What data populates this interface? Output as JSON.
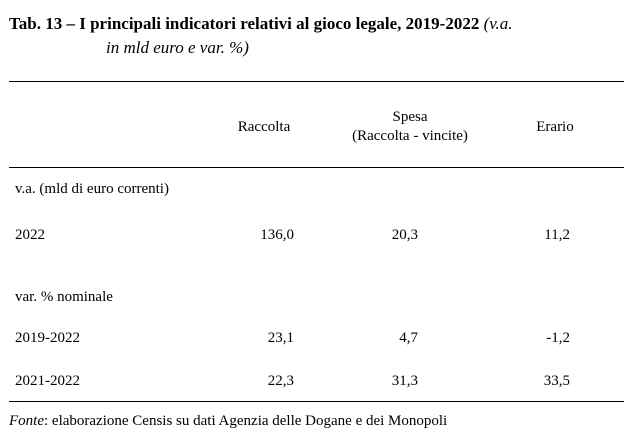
{
  "title": {
    "bold": "Tab. 13 – I principali indicatori relativi al gioco legale, 2019-2022",
    "italic_part1": "(v.a.",
    "italic_part2": "in mld euro e var. %)"
  },
  "table": {
    "headers": {
      "raccolta": "Raccolta",
      "spesa_line1": "Spesa",
      "spesa_line2": "(Raccolta - vincite)",
      "erario": "Erario"
    },
    "section1": {
      "label": "v.a. (mld di euro correnti)",
      "rows": [
        {
          "label": "2022",
          "raccolta": "136,0",
          "spesa": "20,3",
          "erario": "11,2"
        }
      ]
    },
    "section2": {
      "label": "var. % nominale",
      "rows": [
        {
          "label": "2019-2022",
          "raccolta": "23,1",
          "spesa": "4,7",
          "erario": "-1,2"
        },
        {
          "label": "2021-2022",
          "raccolta": "22,3",
          "spesa": "31,3",
          "erario": "33,5"
        }
      ]
    }
  },
  "source": {
    "label": "Fonte",
    "text": ": elaborazione Censis su dati Agenzia delle Dogane e dei Monopoli"
  }
}
